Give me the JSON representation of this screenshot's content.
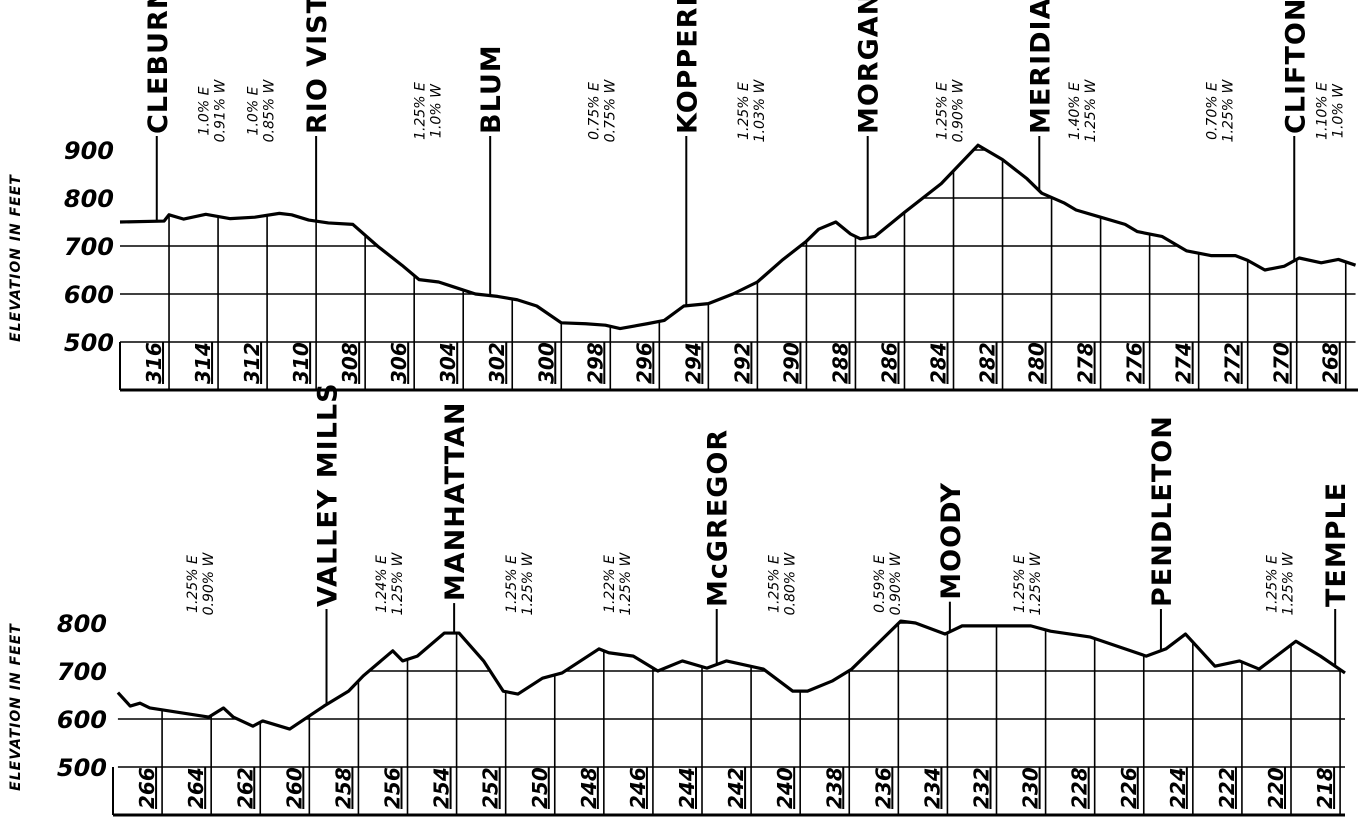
{
  "chart_data": [
    {
      "type": "line",
      "ylabel": "ELEVATION IN FEET",
      "color": "#000000",
      "xlim": [
        318,
        267.5
      ],
      "ylim": [
        400,
        950
      ],
      "xticks": [
        316,
        314,
        312,
        310,
        308,
        306,
        304,
        302,
        300,
        298,
        296,
        294,
        292,
        290,
        288,
        286,
        284,
        282,
        280,
        278,
        276,
        274,
        272,
        270,
        268
      ],
      "yticks": [
        500,
        600,
        700,
        800,
        900
      ],
      "x": [
        318,
        316.2,
        316,
        315.4,
        314.5,
        313.5,
        312.5,
        311.5,
        311,
        310.3,
        309.5,
        308.5,
        307.5,
        306.5,
        305.8,
        305,
        304.4,
        303.5,
        302.6,
        301.8,
        301,
        300,
        299,
        298.2,
        297.6,
        296.5,
        295.8,
        295,
        294,
        293,
        292,
        291,
        290,
        289.5,
        288.8,
        288.2,
        287.8,
        287.2,
        286,
        284.5,
        283,
        282,
        281,
        280.4,
        279.5,
        279,
        278,
        277,
        276.5,
        275.5,
        274.5,
        273.5,
        272.5,
        272,
        271.3,
        270.5,
        269.9,
        269,
        268.3,
        267.6
      ],
      "values": [
        750,
        752,
        765,
        756,
        766,
        757,
        760,
        768,
        765,
        754,
        748,
        745,
        700,
        660,
        630,
        625,
        615,
        600,
        595,
        588,
        575,
        540,
        538,
        535,
        528,
        538,
        545,
        575,
        580,
        600,
        625,
        670,
        710,
        735,
        750,
        725,
        715,
        720,
        770,
        830,
        910,
        880,
        840,
        810,
        790,
        775,
        760,
        745,
        730,
        720,
        690,
        680,
        680,
        670,
        650,
        658,
        675,
        665,
        672,
        660
      ],
      "stations": [
        {
          "name": "CLEBURNE",
          "milepost": 316.5
        },
        {
          "name": "RIO VISTA",
          "milepost": 310
        },
        {
          "name": "BLUM",
          "milepost": 302.9
        },
        {
          "name": "KOPPERL",
          "milepost": 294.9
        },
        {
          "name": "MORGAN",
          "milepost": 287.5
        },
        {
          "name": "MERIDIAN",
          "milepost": 280.5
        },
        {
          "name": "CLIFTON",
          "milepost": 270.1
        }
      ],
      "grades": [
        {
          "milepost": 314.3,
          "east": "1.0% E",
          "west": "0.91% W"
        },
        {
          "milepost": 312.3,
          "east": "1.0% E",
          "west": "0.85% W"
        },
        {
          "milepost": 305.5,
          "east": "1.25% E",
          "west": "1.0% W"
        },
        {
          "milepost": 298.4,
          "east": "0.75% E",
          "west": "0.75% W"
        },
        {
          "milepost": 292.3,
          "east": "1.25% E",
          "west": "1.03% W"
        },
        {
          "milepost": 284.2,
          "east": "1.25% E",
          "west": "0.90% W"
        },
        {
          "milepost": 278.8,
          "east": "1.40% E",
          "west": "1.25% W"
        },
        {
          "milepost": 273.2,
          "east": "0.70% E",
          "west": "1.25% W"
        },
        {
          "milepost": 268.7,
          "east": "1.10% E",
          "west": "1.0% W"
        }
      ]
    },
    {
      "type": "line",
      "ylabel": "ELEVATION IN FEET",
      "color": "#000000",
      "xlim": [
        268,
        217.8
      ],
      "ylim": [
        400,
        850
      ],
      "xticks": [
        266,
        264,
        262,
        260,
        258,
        256,
        254,
        252,
        250,
        248,
        246,
        244,
        242,
        240,
        238,
        236,
        234,
        232,
        230,
        228,
        226,
        224,
        222,
        220,
        218
      ],
      "yticks": [
        500,
        600,
        700,
        800
      ],
      "x": [
        267.8,
        267.3,
        266.9,
        266.5,
        264.1,
        263.5,
        263.1,
        262.3,
        261.9,
        260.8,
        259.4,
        258.4,
        257.8,
        256.6,
        256.2,
        255.6,
        254.5,
        253.9,
        252.9,
        252.1,
        251.5,
        250.5,
        249.7,
        248.2,
        247.8,
        246.8,
        245.8,
        244.8,
        243.8,
        243,
        241.5,
        240.3,
        239.7,
        238.7,
        237.9,
        235.9,
        235.3,
        234.1,
        233.4,
        231.8,
        230.6,
        229.8,
        228.2,
        225.9,
        225.1,
        224.3,
        223.1,
        222.1,
        221.3,
        219.8,
        218.8,
        217.8
      ],
      "values": [
        655,
        627,
        633,
        623,
        604,
        623,
        604,
        585,
        596,
        579,
        627,
        658,
        690,
        742,
        721,
        731,
        779,
        779,
        721,
        658,
        652,
        685,
        696,
        746,
        738,
        731,
        700,
        721,
        706,
        721,
        704,
        658,
        658,
        679,
        704,
        804,
        800,
        777,
        794,
        794,
        794,
        783,
        771,
        731,
        746,
        777,
        710,
        721,
        704,
        762,
        731,
        696
      ],
      "stations": [
        {
          "name": "VALLEY MILLS",
          "milepost": 259.3
        },
        {
          "name": "MANHATTAN",
          "milepost": 254.1
        },
        {
          "name": "McGREGOR",
          "milepost": 243.4
        },
        {
          "name": "MOODY",
          "milepost": 233.9
        },
        {
          "name": "PENDLETON",
          "milepost": 225.3
        },
        {
          "name": "TEMPLE",
          "milepost": 218.2
        }
      ],
      "grades": [
        {
          "milepost": 264.5,
          "east": "1.25% E",
          "west": "0.90% W"
        },
        {
          "milepost": 256.8,
          "east": "1.24% E",
          "west": "1.25% W"
        },
        {
          "milepost": 251.5,
          "east": "1.25% E",
          "west": "1.25% W"
        },
        {
          "milepost": 247.5,
          "east": "1.22% E",
          "west": "1.25% W"
        },
        {
          "milepost": 240.8,
          "east": "1.25% E",
          "west": "0.80% W"
        },
        {
          "milepost": 236.5,
          "east": "0.59% E",
          "west": "0.90% W"
        },
        {
          "milepost": 230.8,
          "east": "1.25% E",
          "west": "1.25% W"
        },
        {
          "milepost": 220.5,
          "east": "1.25% E",
          "west": "1.25% W"
        }
      ]
    }
  ]
}
